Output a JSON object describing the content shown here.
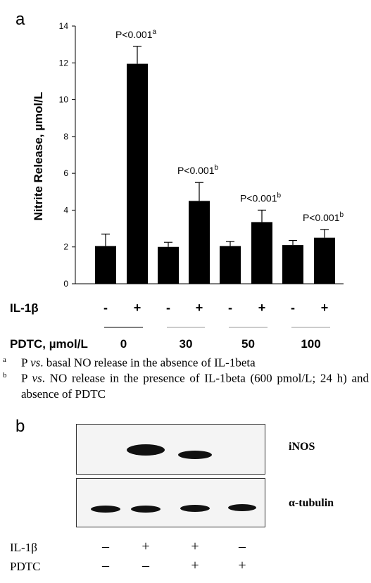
{
  "panel_a": {
    "letter": "a",
    "chart_data": {
      "type": "bar",
      "ylabel": "Nitrite Release, µmol/L",
      "ylim": [
        0,
        14
      ],
      "yticks": [
        0,
        2,
        4,
        6,
        8,
        10,
        12,
        14
      ],
      "values": [
        2.05,
        11.95,
        2.0,
        4.5,
        2.05,
        3.35,
        2.1,
        2.5
      ],
      "errors": [
        0.65,
        0.95,
        0.25,
        1.0,
        0.25,
        0.65,
        0.25,
        0.45
      ],
      "bar_color": "#000000",
      "annotations": [
        {
          "bar": 1,
          "text": "P<0.001",
          "sup": "a"
        },
        {
          "bar": 3,
          "text": "P<0.001",
          "sup": "b"
        },
        {
          "bar": 5,
          "text": "P<0.001",
          "sup": "b"
        },
        {
          "bar": 7,
          "text": "P<0.001",
          "sup": "b"
        }
      ],
      "il1b_label": "IL-1β",
      "il1b_signs": [
        "-",
        "+",
        "-",
        "+",
        "-",
        "+",
        "-",
        "+"
      ],
      "pdtc_label": "PDTC, µmol/L",
      "pdtc_groups": [
        "0",
        "30",
        "50",
        "100"
      ]
    },
    "footnotes": [
      {
        "mark": "a",
        "text_before": "P ",
        "italic": "vs",
        "text_after": ". basal NO release in the absence of IL-1beta"
      },
      {
        "mark": "b",
        "text_before": "P ",
        "italic": "vs",
        "text_after": ". NO release in the presence of IL-1beta (600 pmol/L; 24 h) and absence of PDTC"
      }
    ]
  },
  "panel_b": {
    "letter": "b",
    "blots": [
      {
        "label": "iNOS",
        "bands": [
          false,
          true,
          true,
          false
        ]
      },
      {
        "label": "α-tubulin",
        "bands": [
          true,
          true,
          true,
          true
        ]
      }
    ],
    "treatments": [
      {
        "label": "IL-1β",
        "signs": [
          "–",
          "+",
          "+",
          "–"
        ]
      },
      {
        "label": "PDTC",
        "signs": [
          "–",
          "–",
          "+",
          "+"
        ]
      }
    ]
  }
}
